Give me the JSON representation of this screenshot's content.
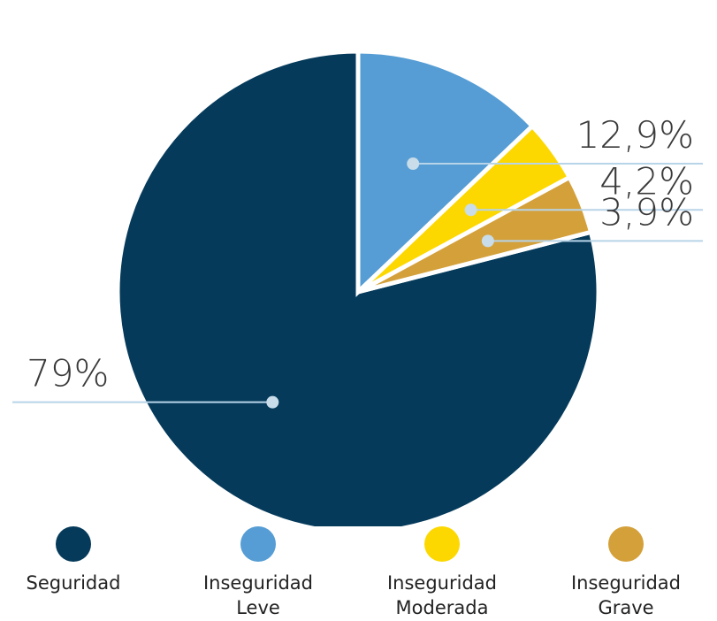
{
  "chart_data": {
    "type": "pie",
    "categories": [
      "Seguridad",
      "Inseguridad Leve",
      "Inseguridad Moderada",
      "Inseguridad Grave"
    ],
    "values": [
      79,
      12.9,
      4.2,
      3.9
    ],
    "value_labels": [
      "79%",
      "12,9%",
      "4,2%",
      "3,9%"
    ],
    "colors": [
      "#053a5a",
      "#559dd4",
      "#fcd800",
      "#d4a03a"
    ]
  }
}
